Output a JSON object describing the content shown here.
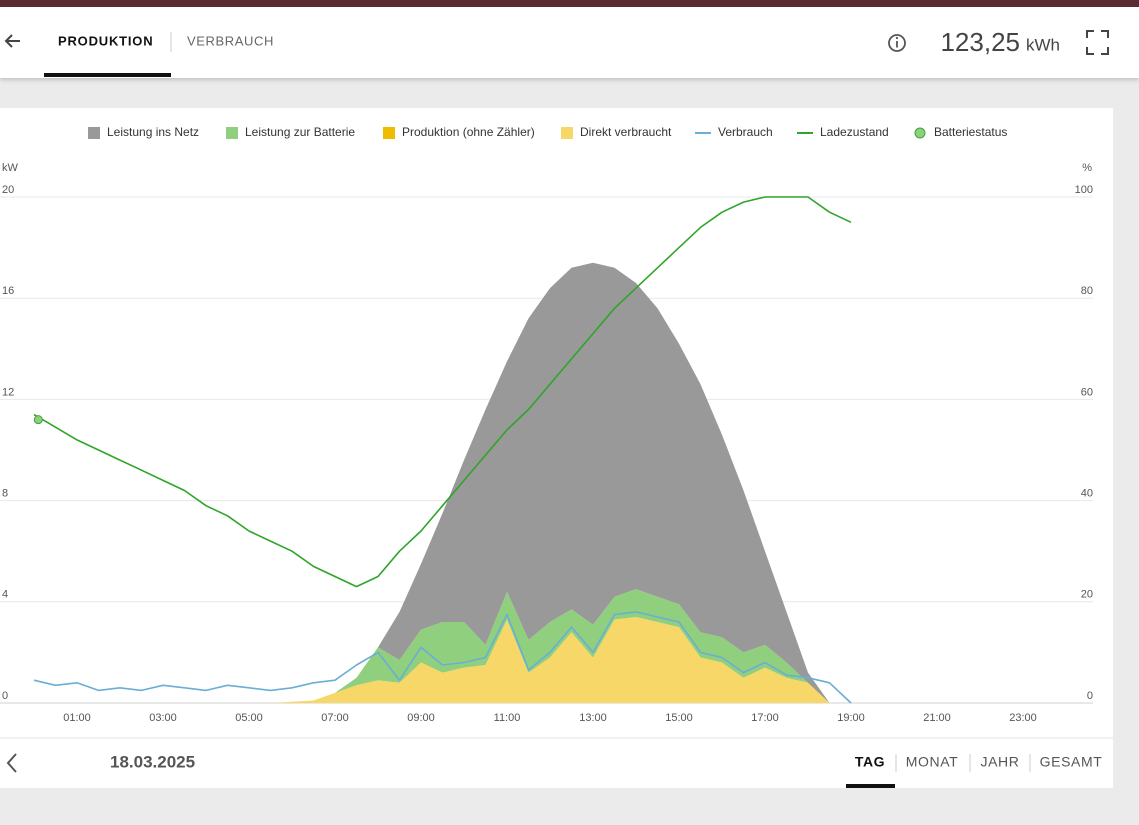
{
  "header": {
    "tabs": [
      "PRODUKTION",
      "VERBRAUCH"
    ],
    "total": "123,25",
    "unit": "kWh"
  },
  "chart_data": {
    "type": "area",
    "stacked": true,
    "grid": true,
    "y_label": "kW",
    "y2_label": "%",
    "x": [
      0,
      0.5,
      1,
      1.5,
      2,
      2.5,
      3,
      3.5,
      4,
      4.5,
      5,
      5.5,
      6,
      6.5,
      7,
      7.5,
      8,
      8.5,
      9,
      9.5,
      10,
      10.5,
      11,
      11.5,
      12,
      12.5,
      13,
      13.5,
      14,
      14.5,
      15,
      15.5,
      16,
      16.5,
      17,
      17.5,
      18,
      18.5,
      19
    ],
    "xlim": [
      0,
      24
    ],
    "xticks": [
      {
        "value": 1,
        "label": "01:00"
      },
      {
        "value": 3,
        "label": "03:00"
      },
      {
        "value": 5,
        "label": "05:00"
      },
      {
        "value": 7,
        "label": "07:00"
      },
      {
        "value": 9,
        "label": "09:00"
      },
      {
        "value": 11,
        "label": "11:00"
      },
      {
        "value": 13,
        "label": "13:00"
      },
      {
        "value": 15,
        "label": "15:00"
      },
      {
        "value": 17,
        "label": "17:00"
      },
      {
        "value": 19,
        "label": "19:00"
      },
      {
        "value": 21,
        "label": "21:00"
      },
      {
        "value": 23,
        "label": "23:00"
      }
    ],
    "ylim": [
      0,
      20
    ],
    "yticks": [
      0,
      4,
      8,
      12,
      16,
      20
    ],
    "y2lim": [
      0,
      100
    ],
    "y2ticks": [
      0,
      20,
      40,
      60,
      80,
      100
    ],
    "series": [
      {
        "name": "Leistung ins Netz",
        "kind": "area",
        "color": "#999999",
        "values": [
          0,
          0,
          0,
          0,
          0,
          0,
          0,
          0,
          0,
          0,
          0,
          0,
          0,
          0,
          0,
          0,
          0,
          1.9,
          2.6,
          4.3,
          6.4,
          9.3,
          9.1,
          12.7,
          13.2,
          13.5,
          14.3,
          13.0,
          12.1,
          11.4,
          10.3,
          9.8,
          8.0,
          6.4,
          3.7,
          2.0,
          0.4,
          0,
          0
        ]
      },
      {
        "name": "Leistung zur Batterie",
        "kind": "area",
        "color": "#8fcf7d",
        "values": [
          0,
          0,
          0,
          0,
          0,
          0,
          0,
          0,
          0,
          0,
          0,
          0,
          0,
          0,
          0,
          0.3,
          1.3,
          0.9,
          1.3,
          2.0,
          1.8,
          0.8,
          1.1,
          1.3,
          1.4,
          0.9,
          1.3,
          0.9,
          1.1,
          1.0,
          0.9,
          1.0,
          1.0,
          1.0,
          0.9,
          0.6,
          0,
          0,
          0
        ]
      },
      {
        "name": "Produktion (ohne Zähler)",
        "kind": "area",
        "color": "#f0bc00",
        "values": [
          0,
          0,
          0,
          0,
          0,
          0,
          0,
          0,
          0,
          0,
          0,
          0,
          0,
          0,
          0,
          0,
          0,
          0,
          0,
          0,
          0,
          0,
          0,
          0,
          0,
          0,
          0,
          0,
          0,
          0,
          0,
          0,
          0,
          0,
          0,
          0,
          0,
          0,
          0
        ]
      },
      {
        "name": "Direkt verbraucht",
        "kind": "area",
        "color": "#f7d768",
        "values": [
          0,
          0,
          0,
          0,
          0,
          0,
          0,
          0,
          0,
          0,
          0,
          0,
          0.05,
          0.1,
          0.4,
          0.7,
          0.9,
          0.8,
          1.6,
          1.2,
          1.4,
          1.5,
          3.3,
          1.2,
          1.8,
          2.8,
          1.8,
          3.3,
          3.4,
          3.2,
          3.0,
          1.8,
          1.6,
          1.0,
          1.4,
          1.0,
          0.8,
          0,
          0
        ]
      },
      {
        "name": "Verbrauch",
        "kind": "line",
        "color": "#6aaed6",
        "values": [
          0.9,
          0.7,
          0.8,
          0.5,
          0.6,
          0.5,
          0.7,
          0.6,
          0.5,
          0.7,
          0.6,
          0.5,
          0.6,
          0.8,
          0.9,
          1.5,
          2.0,
          0.9,
          2.2,
          1.5,
          1.6,
          1.8,
          3.5,
          1.3,
          2.0,
          3.0,
          2.0,
          3.5,
          3.6,
          3.4,
          3.2,
          2.0,
          1.8,
          1.2,
          1.6,
          1.1,
          1.0,
          0.8,
          0
        ]
      },
      {
        "name": "Ladezustand",
        "kind": "line",
        "axis": "y2",
        "color": "#2fa52a",
        "values": [
          57,
          54.5,
          52,
          50,
          48,
          46,
          44,
          42,
          39,
          37,
          34,
          32,
          30,
          27,
          25,
          23,
          25,
          30,
          34,
          39,
          44,
          49,
          54,
          58,
          63,
          68,
          73,
          78,
          82,
          86,
          90,
          94,
          97,
          99,
          100,
          100,
          100,
          97,
          95
        ]
      },
      {
        "name": "Batteriestatus",
        "kind": "dot",
        "axis": "y2",
        "color": "#8fcf7d",
        "x": [
          0.1
        ],
        "values": [
          56
        ]
      }
    ]
  },
  "footer": {
    "date": "18.03.2025",
    "periods": [
      "TAG",
      "MONAT",
      "JAHR",
      "GESAMT"
    ]
  }
}
